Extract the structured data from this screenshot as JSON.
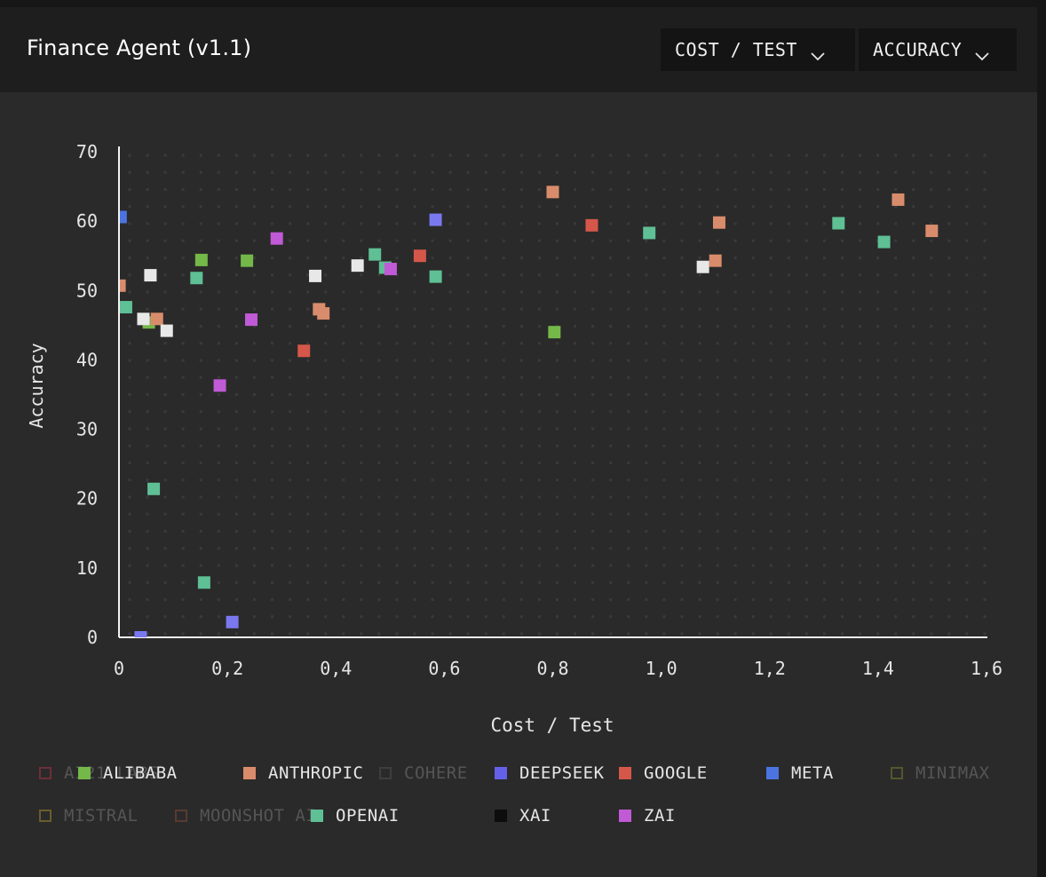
{
  "header": {
    "title": "Finance Agent (v1.1)",
    "x_selector": "COST / TEST",
    "y_selector": "ACCURACY"
  },
  "icons": {
    "dropdown": "chevron-down-icon"
  },
  "legend": [
    {
      "label": "AI21 LABS",
      "color": "#6b2f37",
      "active": false
    },
    {
      "label": "ALIBABA",
      "color": "#74b84a",
      "active": true
    },
    {
      "label": "ANTHROPIC",
      "color": "#d98c6b",
      "active": true
    },
    {
      "label": "COHERE",
      "color": "#3e3e3e",
      "active": false
    },
    {
      "label": "DEEPSEEK",
      "color": "#6460e8",
      "active": true
    },
    {
      "label": "GOOGLE",
      "color": "#d5574a",
      "active": true
    },
    {
      "label": "META",
      "color": "#4b74e0",
      "active": true
    },
    {
      "label": "MINIMAX",
      "color": "#55552e",
      "active": false
    },
    {
      "label": "MISTRAL",
      "color": "#6a5d2c",
      "active": false
    },
    {
      "label": "MOONSHOT AI",
      "color": "#5a3a30",
      "active": false
    },
    {
      "label": "OPENAI",
      "color": "#5fbf95",
      "active": true
    },
    {
      "label": "XAI",
      "color": "#0d0d0d",
      "active": true
    },
    {
      "label": "ZAI",
      "color": "#c05ad6",
      "active": true
    }
  ],
  "chart_data": {
    "type": "scatter",
    "xlabel": "Cost / Test",
    "ylabel": "Accuracy",
    "xlim": [
      0,
      1.6
    ],
    "ylim": [
      0,
      70
    ],
    "xticks": [
      "0",
      "0,2",
      "0,4",
      "0,6",
      "0,8",
      "1,0",
      "1,2",
      "1,4",
      "1,6"
    ],
    "yticks": [
      "0",
      "10",
      "20",
      "30",
      "40",
      "50",
      "60",
      "70"
    ],
    "grid": true,
    "legend_position": "bottom",
    "series": [
      {
        "name": "ALIBABA",
        "color": "#74b84a",
        "points": [
          [
            0.152,
            54.4
          ],
          [
            0.236,
            54.3
          ],
          [
            0.055,
            45.4
          ],
          [
            0.803,
            44.0
          ]
        ]
      },
      {
        "name": "ANTHROPIC",
        "color": "#d98c6b",
        "points": [
          [
            0.8,
            64.2
          ],
          [
            1.437,
            63.1
          ],
          [
            1.499,
            58.6
          ],
          [
            1.107,
            59.8
          ],
          [
            1.1,
            54.3
          ],
          [
            0.369,
            47.3
          ],
          [
            0.377,
            46.7
          ],
          [
            0.07,
            45.9
          ],
          [
            0.001,
            50.7
          ]
        ]
      },
      {
        "name": "COHERE",
        "color": "#e8e8e8",
        "points": [
          [
            0.058,
            52.2
          ],
          [
            0.44,
            53.6
          ],
          [
            0.362,
            52.1
          ],
          [
            0.045,
            45.9
          ],
          [
            0.088,
            44.2
          ],
          [
            1.077,
            53.4
          ]
        ]
      },
      {
        "name": "DEEPSEEK",
        "color": "#7a78ef",
        "points": [
          [
            0.584,
            60.2
          ],
          [
            0.04,
            0.0
          ],
          [
            0.209,
            2.2
          ]
        ]
      },
      {
        "name": "GOOGLE",
        "color": "#d5574a",
        "points": [
          [
            0.555,
            55.0
          ],
          [
            0.341,
            41.3
          ],
          [
            0.872,
            59.4
          ]
        ]
      },
      {
        "name": "META",
        "color": "#4b74e0",
        "points": [
          [
            0.003,
            60.6
          ]
        ]
      },
      {
        "name": "OPENAI",
        "color": "#5fbf95",
        "points": [
          [
            0.472,
            55.2
          ],
          [
            0.491,
            53.3
          ],
          [
            0.584,
            52.0
          ],
          [
            0.143,
            51.8
          ],
          [
            0.013,
            47.6
          ],
          [
            0.064,
            21.4
          ],
          [
            0.157,
            7.9
          ],
          [
            0.978,
            58.3
          ],
          [
            1.327,
            59.7
          ],
          [
            1.411,
            57.0
          ]
        ]
      },
      {
        "name": "ZAI",
        "color": "#c05ad6",
        "points": [
          [
            0.291,
            57.5
          ],
          [
            0.501,
            53.1
          ],
          [
            0.244,
            45.8
          ],
          [
            0.186,
            36.3
          ]
        ]
      }
    ]
  }
}
